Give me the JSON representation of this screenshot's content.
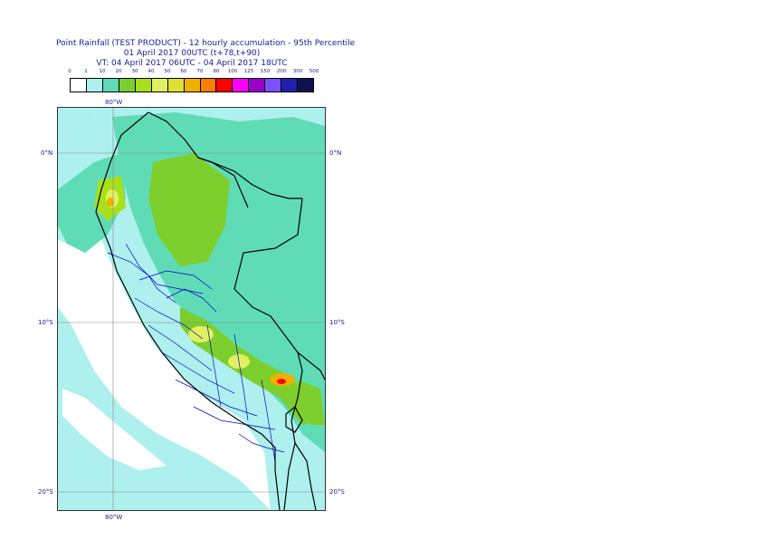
{
  "title": {
    "line1": "Point Rainfall (TEST PRODUCT) - 12 hourly accumulation - 95th Percentile",
    "line2": "01 April 2017 00UTC (t+78,t+90)",
    "line3": "VT: 04 April 2017 06UTC - 04 April 2017 18UTC"
  },
  "legend": {
    "ticks": [
      "0",
      "1",
      "10",
      "20",
      "30",
      "40",
      "50",
      "60",
      "70",
      "80",
      "100",
      "125",
      "150",
      "200",
      "300",
      "500"
    ],
    "colors": [
      "#ffffff",
      "#aef0ee",
      "#5fdcb6",
      "#7ccf2c",
      "#a8e01c",
      "#e0f060",
      "#e0e030",
      "#f0b000",
      "#ff7f00",
      "#ff0000",
      "#ff00ff",
      "#9b00c8",
      "#7a50ff",
      "#2020b0",
      "#101050"
    ]
  },
  "axes": {
    "top_lon": "80°W",
    "bottom_lon": "80°W",
    "left_lat": [
      "0°N",
      "10°S",
      "20°S"
    ],
    "right_lat": [
      "0°N",
      "10°S",
      "20°S"
    ]
  },
  "map": {
    "ocean_color": "#ffffff",
    "light_cyan": "#aef0ee",
    "teal": "#5fdcb6",
    "green": "#7ccf2c",
    "yellow_green": "#a8e01c",
    "yellow": "#e0f060",
    "orange": "#f0b000",
    "red": "#ff0000",
    "coast_color": "#000000",
    "admin_color": "#0000cc",
    "grid_color": "#888888"
  }
}
